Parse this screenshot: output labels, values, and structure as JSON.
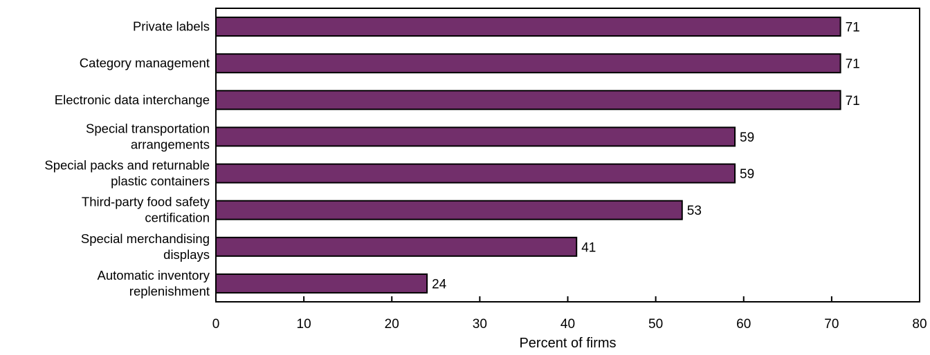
{
  "chart_data": {
    "type": "bar",
    "orientation": "horizontal",
    "categories": [
      [
        "Private labels"
      ],
      [
        "Category management"
      ],
      [
        "Electronic data interchange"
      ],
      [
        "Special transportation",
        "arrangements"
      ],
      [
        "Special packs and returnable",
        "plastic containers"
      ],
      [
        "Third-party food safety",
        "certification"
      ],
      [
        "Special merchandising",
        "displays"
      ],
      [
        "Automatic inventory",
        "replenishment"
      ]
    ],
    "values": [
      71,
      71,
      71,
      59,
      59,
      53,
      41,
      24
    ],
    "xlabel": "Percent of firms",
    "xlim": [
      0,
      80
    ],
    "xticks": [
      0,
      10,
      20,
      30,
      40,
      50,
      60,
      70,
      80
    ],
    "grid": false,
    "legend": "none",
    "colors": {
      "bar_fill": "#722F6B",
      "bar_stroke": "#000000"
    }
  }
}
